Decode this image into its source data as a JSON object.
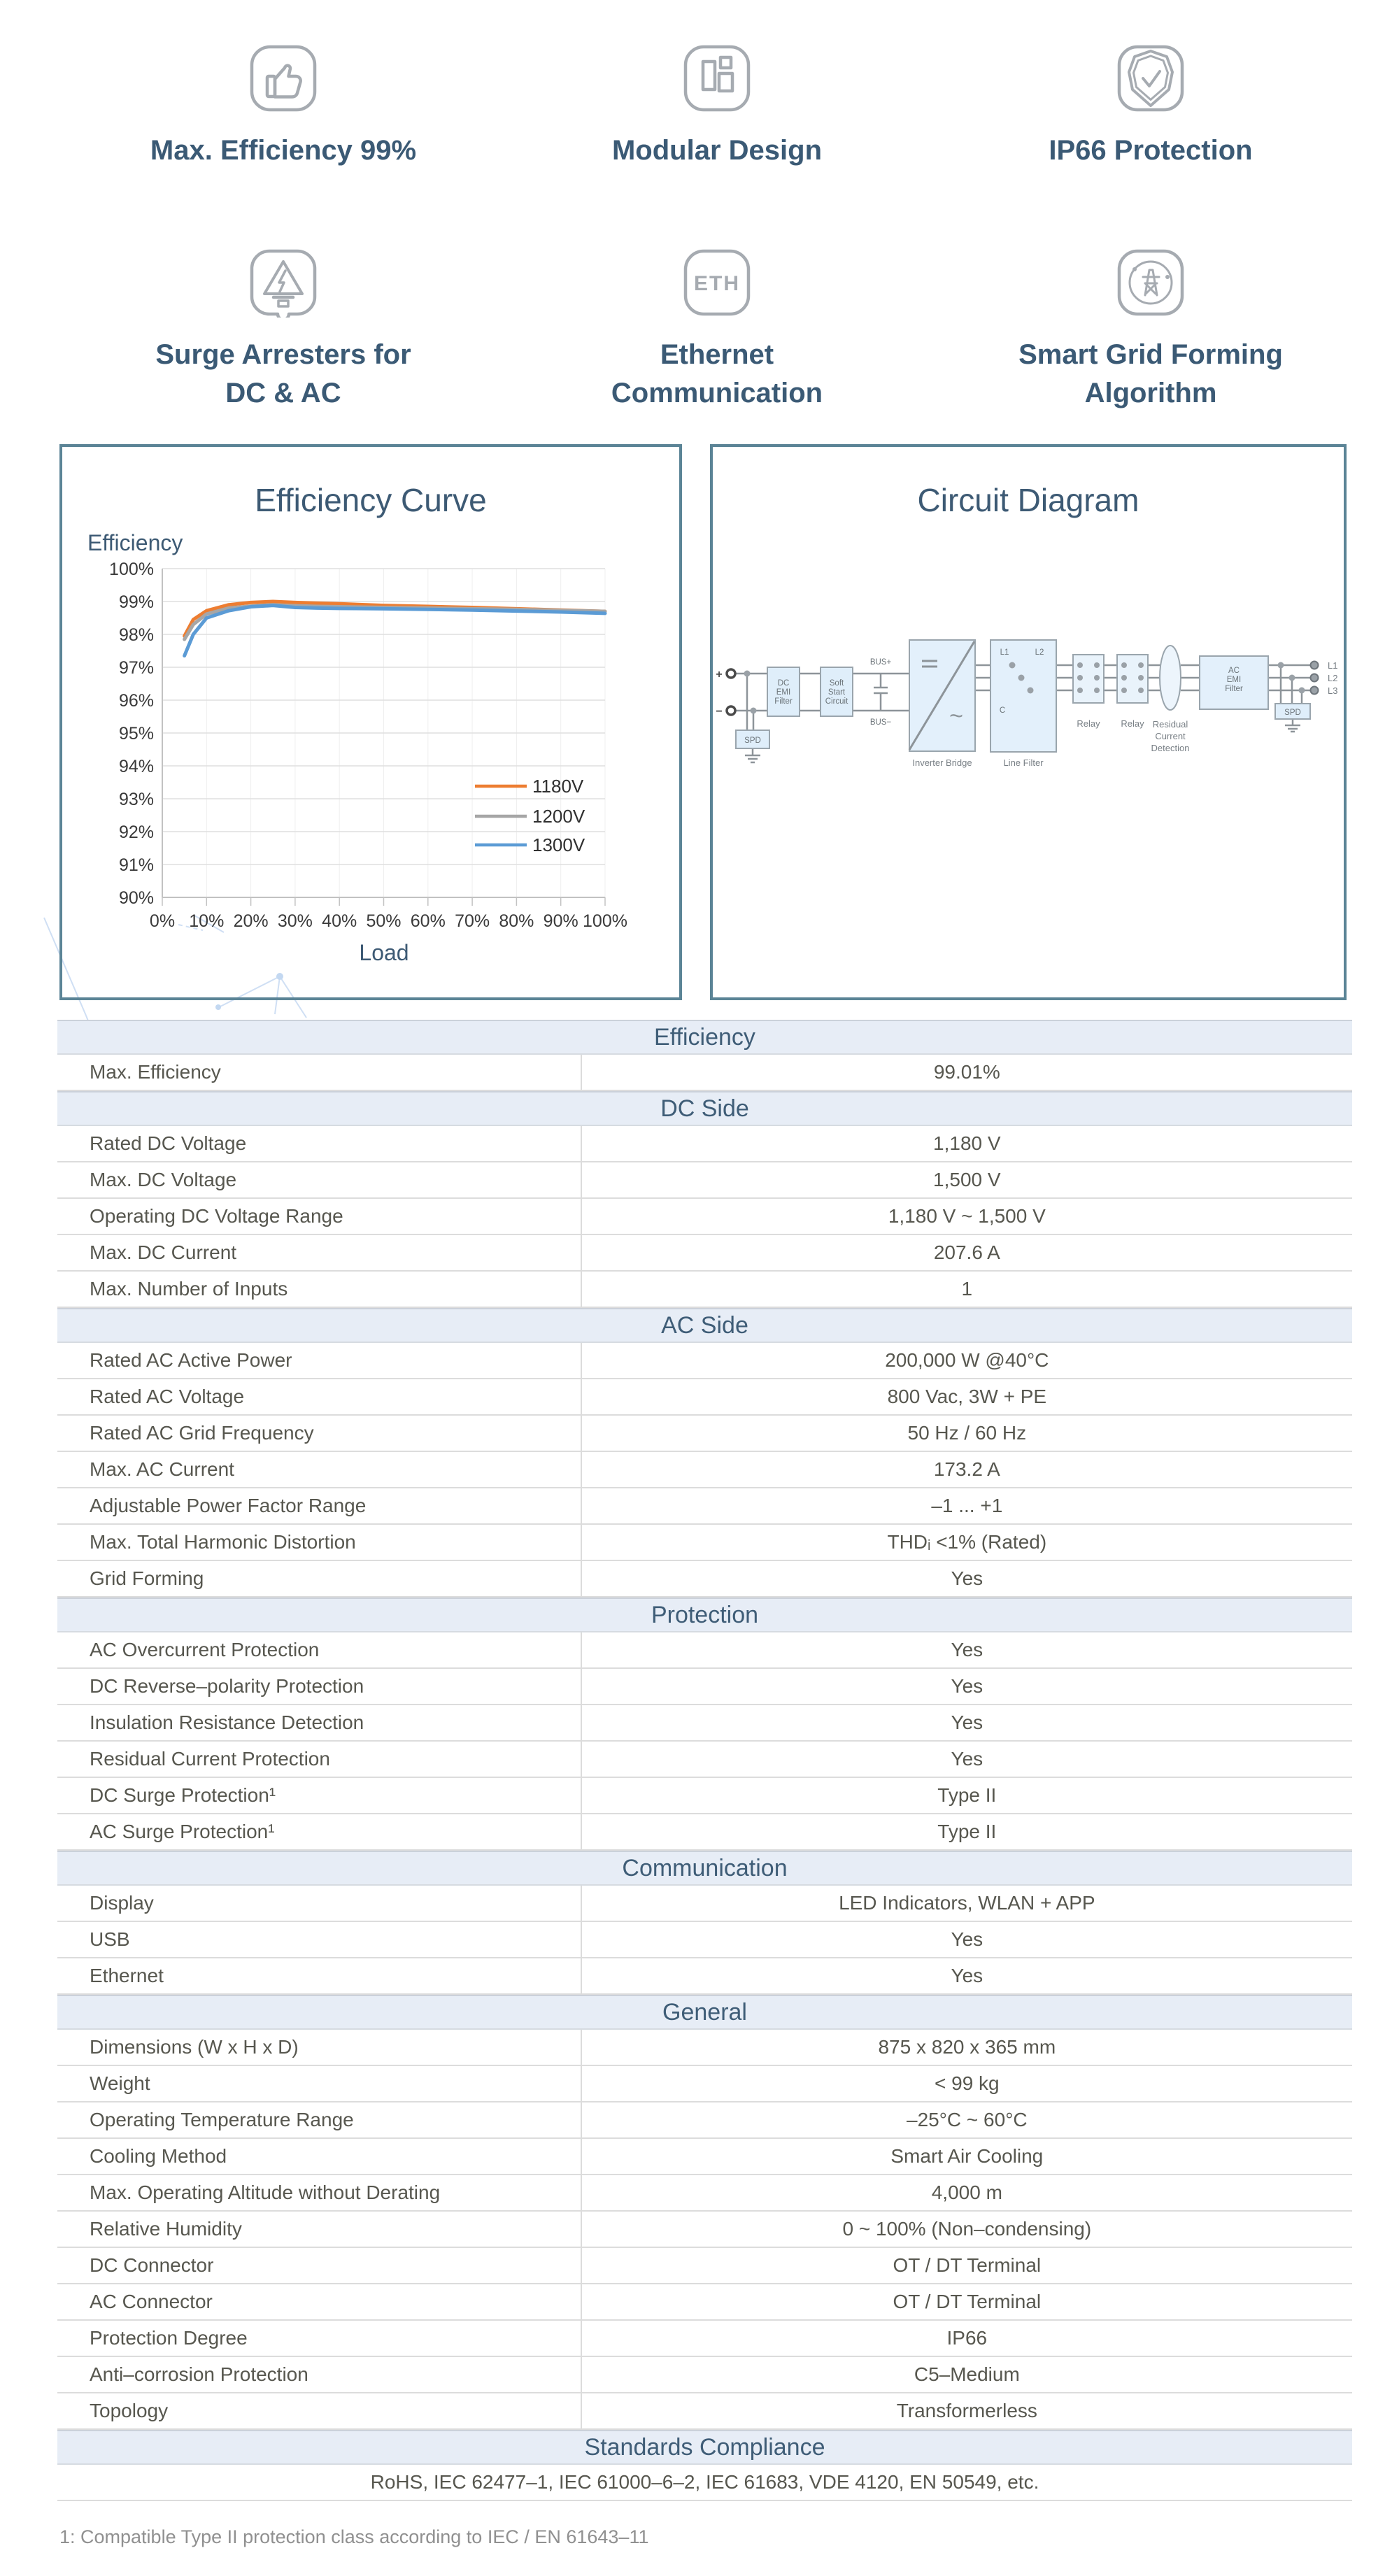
{
  "colors": {
    "accent_text": "#3D5A74",
    "panel_border": "#5B8496",
    "section_header_bg": "#E7EDF6",
    "row_border": "#DCDCDC",
    "icon_stroke": "#A6ABB1",
    "series_1180V": "#ED7D31",
    "series_1200V": "#A6A6A6",
    "series_1300V": "#5B9BD5"
  },
  "features": {
    "items": [
      {
        "icon": "thumbs-up-icon",
        "lines": [
          "Max. Efficiency 99%"
        ]
      },
      {
        "icon": "modular-design-icon",
        "lines": [
          "Modular Design"
        ]
      },
      {
        "icon": "shield-check-icon",
        "lines": [
          "IP66 Protection"
        ]
      },
      {
        "icon": "surge-arrester-icon",
        "lines": [
          "Surge Arresters for",
          "DC & AC"
        ]
      },
      {
        "icon": "ethernet-icon",
        "icon_text": "ETH",
        "lines": [
          "Ethernet",
          "Communication"
        ]
      },
      {
        "icon": "grid-forming-icon",
        "lines": [
          "Smart Grid Forming",
          "Algorithm"
        ]
      }
    ]
  },
  "chart_data": {
    "type": "line",
    "title": "Efficiency Curve",
    "ylabel": "Efficiency",
    "xlabel": "Load",
    "xlim": [
      0,
      100
    ],
    "ylim": [
      90,
      100
    ],
    "grid": true,
    "legend_position": "middle-right",
    "x_ticks": [
      "0%",
      "10%",
      "20%",
      "30%",
      "40%",
      "50%",
      "60%",
      "70%",
      "80%",
      "90%",
      "100%"
    ],
    "y_ticks": [
      "100%",
      "99%",
      "98%",
      "97%",
      "96%",
      "95%",
      "94%",
      "93%",
      "92%",
      "91%",
      "90%"
    ],
    "x": [
      5,
      7,
      10,
      15,
      20,
      25,
      30,
      35,
      40,
      50,
      60,
      70,
      80,
      90,
      100
    ],
    "series": [
      {
        "name": "1180V",
        "color": "#ED7D31",
        "values": [
          97.95,
          98.45,
          98.72,
          98.9,
          98.97,
          99.0,
          98.97,
          98.95,
          98.93,
          98.88,
          98.85,
          98.82,
          98.78,
          98.74,
          98.7
        ]
      },
      {
        "name": "1200V",
        "color": "#A6A6A6",
        "values": [
          97.85,
          98.3,
          98.62,
          98.8,
          98.86,
          98.9,
          98.87,
          98.85,
          98.84,
          98.82,
          98.8,
          98.78,
          98.76,
          98.73,
          98.7
        ]
      },
      {
        "name": "1300V",
        "color": "#5B9BD5",
        "values": [
          97.35,
          98.0,
          98.5,
          98.72,
          98.84,
          98.88,
          98.82,
          98.8,
          98.79,
          98.78,
          98.76,
          98.74,
          98.71,
          98.68,
          98.64
        ]
      }
    ]
  },
  "circuit": {
    "title": "Circuit Diagram",
    "plus": "+",
    "minus": "−",
    "dc_emi_filter": [
      "DC",
      "EMI",
      "Filter"
    ],
    "soft_start": [
      "Soft",
      "Start",
      "Circuit"
    ],
    "bus_plus": "BUS+",
    "bus_minus": "BUS−",
    "spd_left": "SPD",
    "spd_right": "SPD",
    "inverter_label": "Inverter Bridge",
    "l1": "L1",
    "l2": "L2",
    "c": "C",
    "line_filter_label": "Line Filter",
    "relay_label": "Relay",
    "rcd": [
      "Residual",
      "Current",
      "Detection"
    ],
    "ac_emi_filter": [
      "AC",
      "EMI",
      "Filter"
    ],
    "out_l1": "L1",
    "out_l2": "L2",
    "out_l3": "L3"
  },
  "table": {
    "sections": [
      {
        "title": "Efficiency",
        "rows": [
          [
            "Max. Efficiency",
            "99.01%"
          ]
        ]
      },
      {
        "title": "DC Side",
        "rows": [
          [
            "Rated DC Voltage",
            "1,180 V"
          ],
          [
            "Max. DC Voltage",
            "1,500 V"
          ],
          [
            "Operating DC Voltage Range",
            "1,180 V ~ 1,500 V"
          ],
          [
            "Max. DC Current",
            "207.6 A"
          ],
          [
            "Max. Number of Inputs",
            "1"
          ]
        ]
      },
      {
        "title": "AC Side",
        "rows": [
          [
            "Rated AC Active Power",
            "200,000 W @40°C"
          ],
          [
            "Rated AC Voltage",
            "800 Vac, 3W + PE"
          ],
          [
            "Rated AC Grid Frequency",
            "50 Hz / 60 Hz"
          ],
          [
            "Max. AC Current",
            "173.2 A"
          ],
          [
            "Adjustable Power Factor Range",
            "–1 ... +1"
          ],
          [
            "Max. Total Harmonic Distortion",
            "THDᵢ <1% (Rated)"
          ],
          [
            "Grid Forming",
            "Yes"
          ]
        ]
      },
      {
        "title": "Protection",
        "rows": [
          [
            "AC Overcurrent Protection",
            "Yes"
          ],
          [
            "DC Reverse–polarity Protection",
            "Yes"
          ],
          [
            "Insulation Resistance Detection",
            "Yes"
          ],
          [
            "Residual Current Protection",
            "Yes"
          ],
          [
            "DC Surge Protection¹",
            "Type II"
          ],
          [
            "AC Surge Protection¹",
            "Type II"
          ]
        ]
      },
      {
        "title": "Communication",
        "rows": [
          [
            "Display",
            "LED Indicators, WLAN + APP"
          ],
          [
            "USB",
            "Yes"
          ],
          [
            "Ethernet",
            "Yes"
          ]
        ]
      },
      {
        "title": "General",
        "rows": [
          [
            "Dimensions (W x H x D)",
            "875 x 820 x 365 mm"
          ],
          [
            "Weight",
            "< 99 kg"
          ],
          [
            "Operating Temperature Range",
            "–25°C ~ 60°C"
          ],
          [
            "Cooling Method",
            "Smart Air Cooling"
          ],
          [
            "Max. Operating Altitude without Derating",
            "4,000 m"
          ],
          [
            "Relative Humidity",
            "0 ~ 100% (Non–condensing)"
          ],
          [
            "DC Connector",
            "OT / DT Terminal"
          ],
          [
            "AC Connector",
            "OT / DT Terminal"
          ],
          [
            "Protection Degree",
            "IP66"
          ],
          [
            "Anti–corrosion Protection",
            "C5–Medium"
          ],
          [
            "Topology",
            "Transformerless"
          ]
        ]
      },
      {
        "title": "Standards Compliance",
        "rows": [
          [
            "RoHS, IEC 62477–1, IEC 61000–6–2, IEC 61683, VDE 4120, EN 50549, etc."
          ]
        ]
      }
    ]
  },
  "footnote": "1: Compatible Type II protection class according to IEC / EN 61643–11"
}
